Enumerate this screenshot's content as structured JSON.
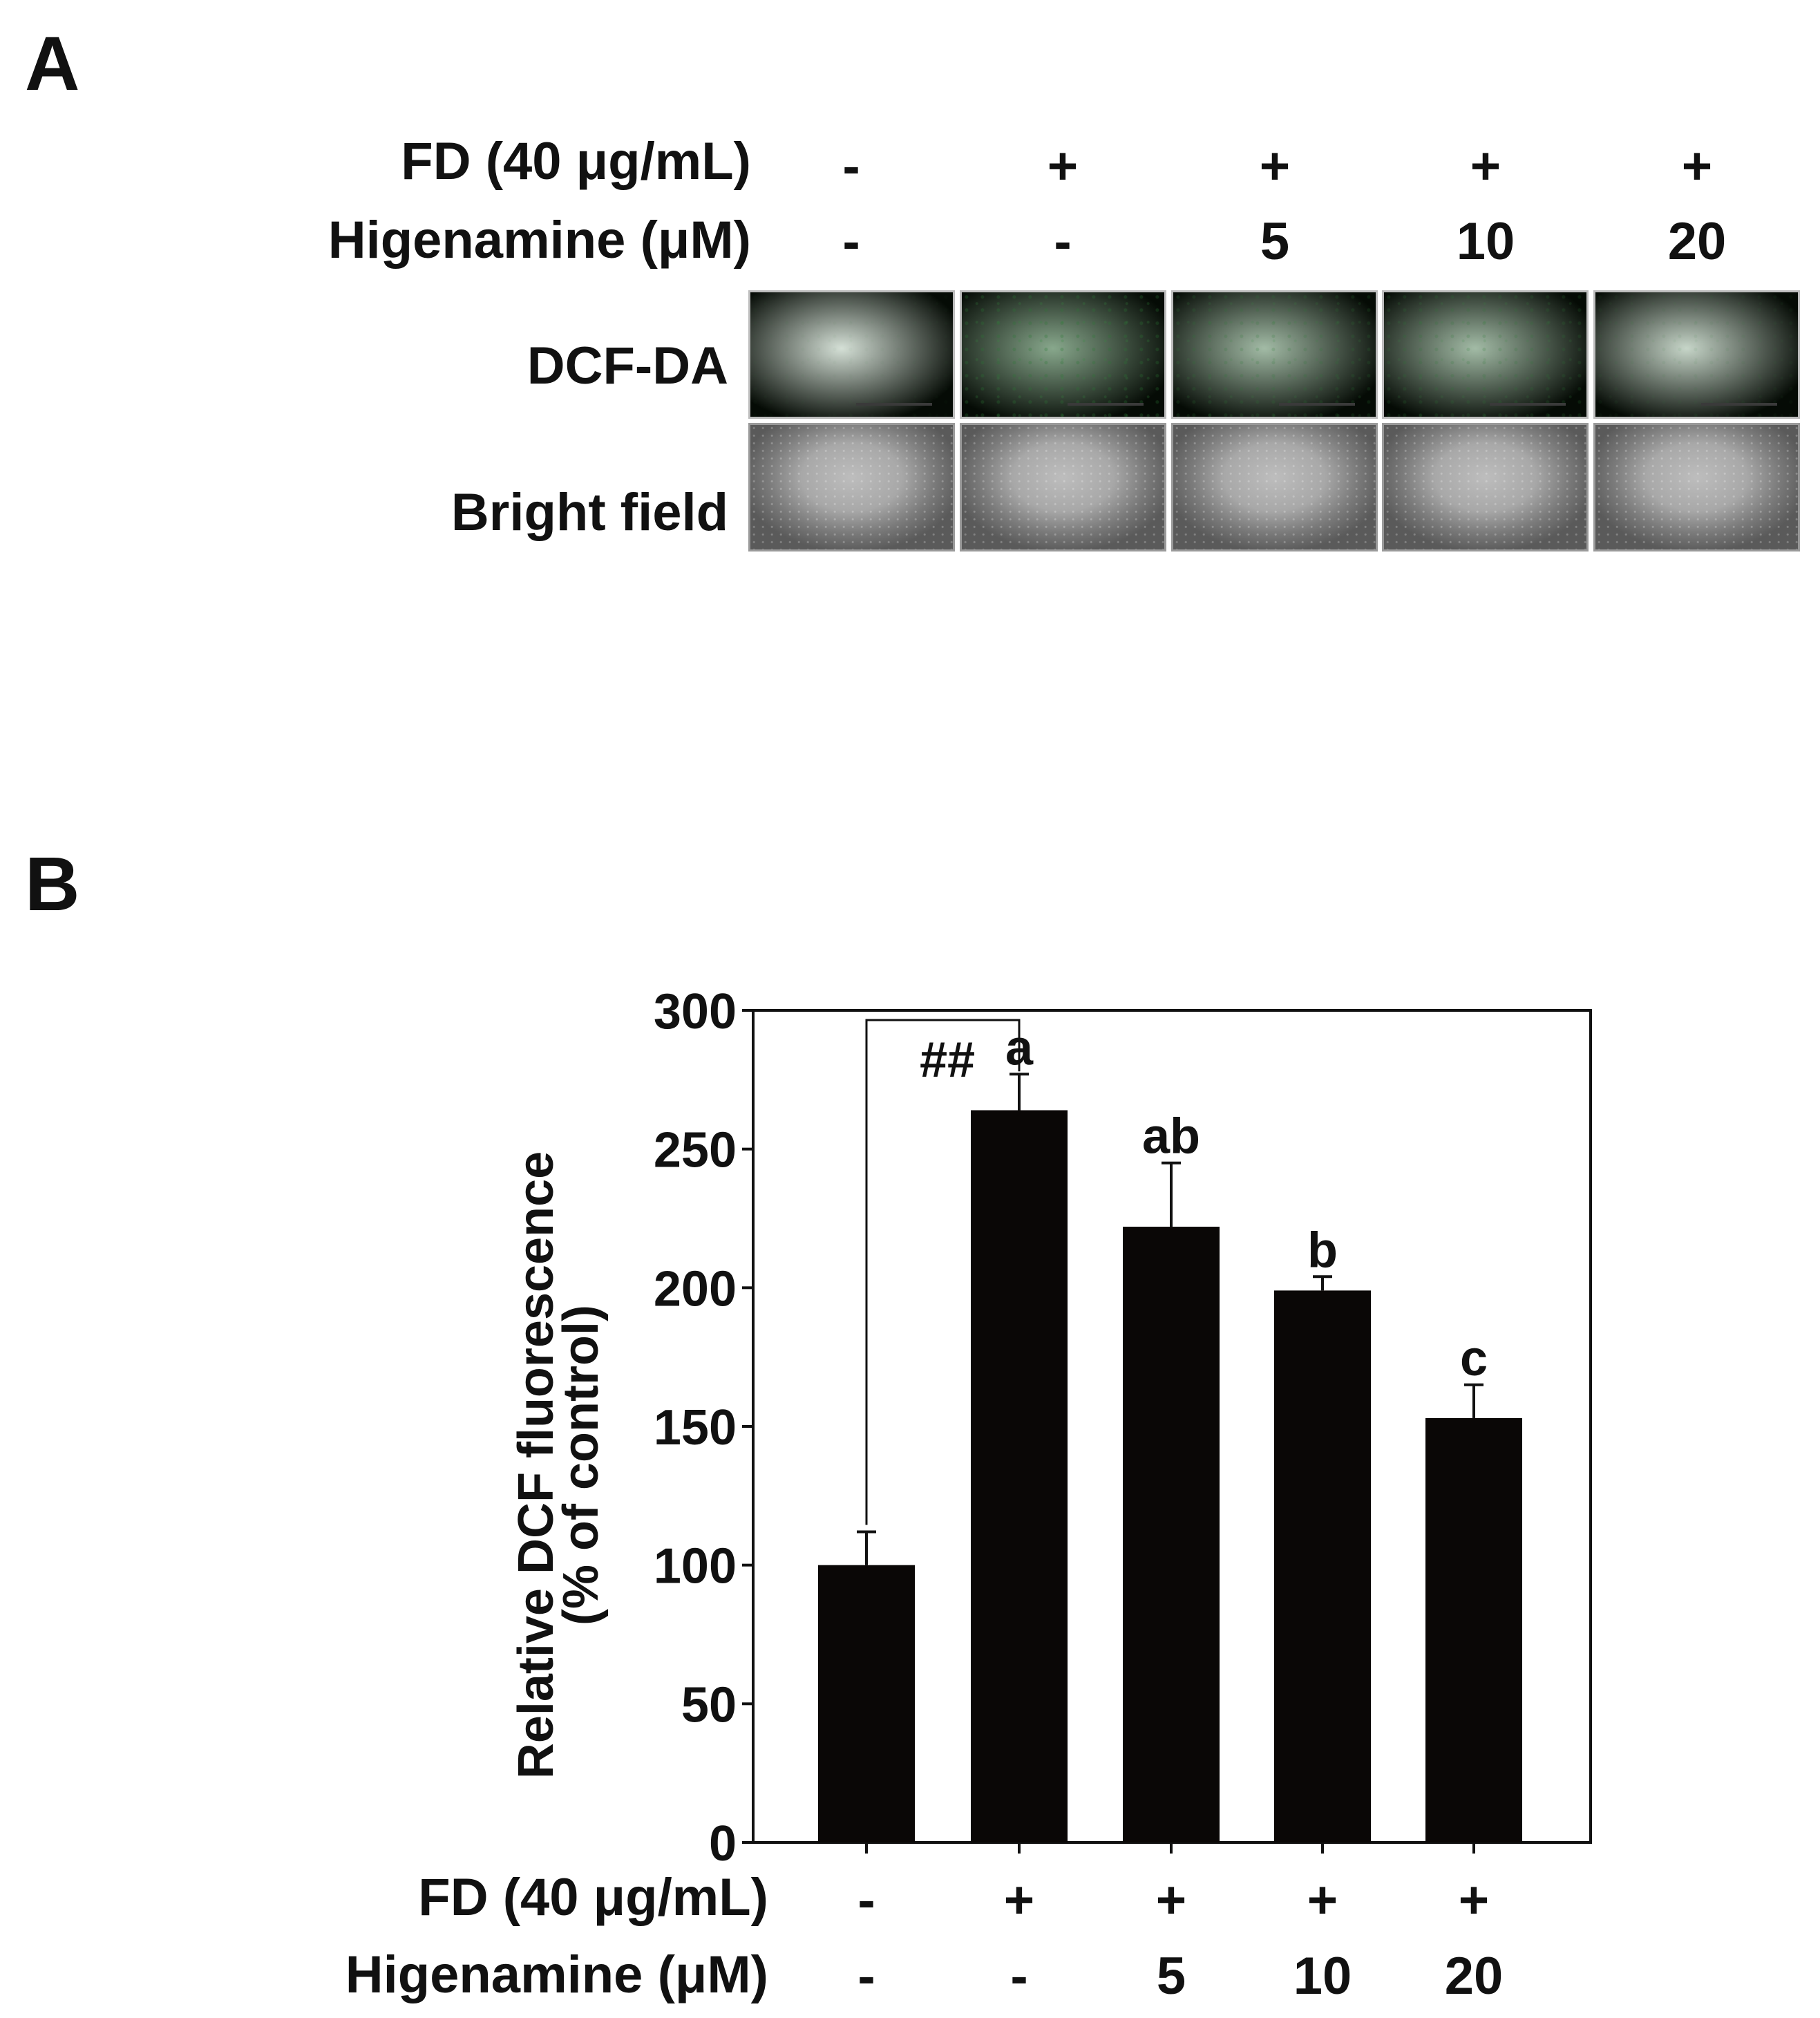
{
  "panel_a": {
    "letter": "A",
    "row_fd_label": "FD (40 μg/mL)",
    "row_hig_label": "Higenamine (μM)",
    "fd_signs": [
      "-",
      "+",
      "+",
      "+",
      "+"
    ],
    "hig_values": [
      "-",
      "-",
      "5",
      "10",
      "20"
    ],
    "image_rows": [
      "DCF-DA",
      "Bright field"
    ],
    "dcf_intensity": [
      0.05,
      0.45,
      0.3,
      0.3,
      0.12
    ],
    "colors": {
      "dcf_dark": "#050b05",
      "dcf_green": "#1e5a26",
      "bright_center": "#bdbdbd",
      "bright_edge": "#5a5a5a"
    }
  },
  "panel_b": {
    "letter": "B",
    "row_fd_label": "FD (40 μg/mL)",
    "row_hig_label": "Higenamine (μM)",
    "fd_signs": [
      "-",
      "+",
      "+",
      "+",
      "+"
    ],
    "hig_values": [
      "-",
      "-",
      "5",
      "10",
      "20"
    ]
  },
  "chart_data": {
    "type": "bar",
    "categories": [
      "1",
      "2",
      "3",
      "4",
      "5"
    ],
    "values": [
      100,
      264,
      222,
      199,
      153
    ],
    "errors": [
      12,
      13,
      23,
      5,
      12
    ],
    "sig_labels": [
      "",
      "a",
      "ab",
      "b",
      "c"
    ],
    "comparison_label": "##",
    "title": "",
    "xlabel": "",
    "ylabel_line1": "Relative DCF fluorescence",
    "ylabel_line2": "(% of control)",
    "ylim": [
      0,
      300
    ],
    "yticks": [
      "0",
      "50",
      "100",
      "150",
      "200",
      "250",
      "300"
    ],
    "bar_color": "#0a0706"
  }
}
